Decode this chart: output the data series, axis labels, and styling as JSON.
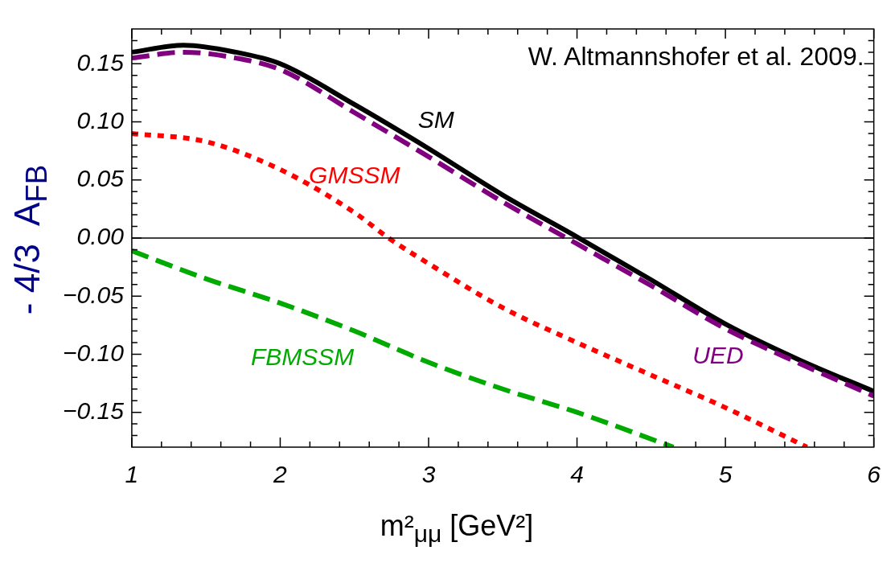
{
  "chart_data": {
    "type": "line",
    "xlabel": "m²$_{μμ}$ [GeV²]",
    "ylabel": "- 4/3  A$_{FB}$",
    "xlim": [
      1,
      6
    ],
    "ylim": [
      -0.18,
      0.18
    ],
    "xticks": [
      1,
      {
        "value": 1.2,
        "label": null
      },
      {
        "value": 1.4,
        "label": null
      },
      {
        "value": 1.6,
        "label": null
      },
      {
        "value": 1.8,
        "label": null
      },
      2,
      {
        "value": 2.2,
        "label": null
      },
      {
        "value": 2.4,
        "label": null
      },
      {
        "value": 2.6,
        "label": null
      },
      {
        "value": 2.8,
        "label": null
      },
      3,
      {
        "value": 3.2,
        "label": null
      },
      {
        "value": 3.4,
        "label": null
      },
      {
        "value": 3.6,
        "label": null
      },
      {
        "value": 3.8,
        "label": null
      },
      4,
      {
        "value": 4.2,
        "label": null
      },
      {
        "value": 4.4,
        "label": null
      },
      {
        "value": 4.6,
        "label": null
      },
      {
        "value": 4.8,
        "label": null
      },
      5,
      {
        "value": 5.2,
        "label": null
      },
      {
        "value": 5.4,
        "label": null
      },
      {
        "value": 5.6,
        "label": null
      },
      {
        "value": 5.8,
        "label": null
      },
      6
    ],
    "yticks": [
      {
        "value": -0.17,
        "label": null
      },
      {
        "value": -0.16,
        "label": null
      },
      {
        "value": -0.15,
        "label": "−0.15"
      },
      {
        "value": -0.14,
        "label": null
      },
      {
        "value": -0.13,
        "label": null
      },
      {
        "value": -0.12,
        "label": null
      },
      {
        "value": -0.11,
        "label": null
      },
      {
        "value": -0.1,
        "label": "−0.10"
      },
      {
        "value": -0.09,
        "label": null
      },
      {
        "value": -0.08,
        "label": null
      },
      {
        "value": -0.07,
        "label": null
      },
      {
        "value": -0.06,
        "label": null
      },
      {
        "value": -0.05,
        "label": "−0.05"
      },
      {
        "value": -0.04,
        "label": null
      },
      {
        "value": -0.03,
        "label": null
      },
      {
        "value": -0.02,
        "label": null
      },
      {
        "value": -0.01,
        "label": null
      },
      {
        "value": 0,
        "label": "0.00"
      },
      {
        "value": 0.01,
        "label": null
      },
      {
        "value": 0.02,
        "label": null
      },
      {
        "value": 0.03,
        "label": null
      },
      {
        "value": 0.04,
        "label": null
      },
      {
        "value": 0.05,
        "label": "0.05"
      },
      {
        "value": 0.06,
        "label": null
      },
      {
        "value": 0.07,
        "label": null
      },
      {
        "value": 0.08,
        "label": null
      },
      {
        "value": 0.09,
        "label": null
      },
      {
        "value": 0.1,
        "label": "0.10"
      },
      {
        "value": 0.11,
        "label": null
      },
      {
        "value": 0.12,
        "label": null
      },
      {
        "value": 0.13,
        "label": null
      },
      {
        "value": 0.14,
        "label": null
      },
      {
        "value": 0.15,
        "label": "0.15"
      },
      {
        "value": 0.16,
        "label": null
      },
      {
        "value": 0.17,
        "label": null
      }
    ],
    "grid": false,
    "legend": false,
    "ref_lines": [
      {
        "axis": "y",
        "value": 0,
        "color": "#000000",
        "line_style": "solid"
      }
    ],
    "series": [
      {
        "name": "SM",
        "color": "#000000",
        "line_style": "solid",
        "x": [
          1,
          1.35,
          1.7,
          2,
          2.5,
          3,
          3.5,
          4,
          4.5,
          5,
          5.5,
          6
        ],
        "values": [
          0.16,
          0.166,
          0.16,
          0.15,
          0.115,
          0.077,
          0.037,
          0.001,
          -0.036,
          -0.074,
          -0.105,
          -0.132
        ]
      },
      {
        "name": "UED",
        "color": "#800080",
        "line_style": "dashed",
        "x": [
          1,
          1.35,
          1.7,
          2,
          2.5,
          3,
          3.5,
          4,
          4.5,
          5,
          5.5,
          6
        ],
        "values": [
          0.155,
          0.16,
          0.155,
          0.145,
          0.108,
          0.07,
          0.031,
          -0.005,
          -0.041,
          -0.078,
          -0.108,
          -0.136
        ]
      },
      {
        "name": "GMSSM",
        "color": "#ff0000",
        "line_style": "dotted",
        "x": [
          1,
          1.5,
          2,
          2.5,
          2.73,
          3,
          3.5,
          4,
          4.5,
          5,
          5.55
        ],
        "values": [
          0.09,
          0.083,
          0.059,
          0.022,
          0,
          -0.022,
          -0.06,
          -0.09,
          -0.118,
          -0.146,
          -0.18
        ]
      },
      {
        "name": "FBMSSM",
        "color": "#00aa00",
        "line_style": "dashed",
        "x": [
          1,
          1.5,
          2,
          2.5,
          3,
          3.5,
          4,
          4.65
        ],
        "values": [
          -0.011,
          -0.035,
          -0.056,
          -0.08,
          -0.107,
          -0.13,
          -0.15,
          -0.18
        ]
      }
    ],
    "annotations": [
      "W. Altmannshofer et al. 2009."
    ]
  }
}
